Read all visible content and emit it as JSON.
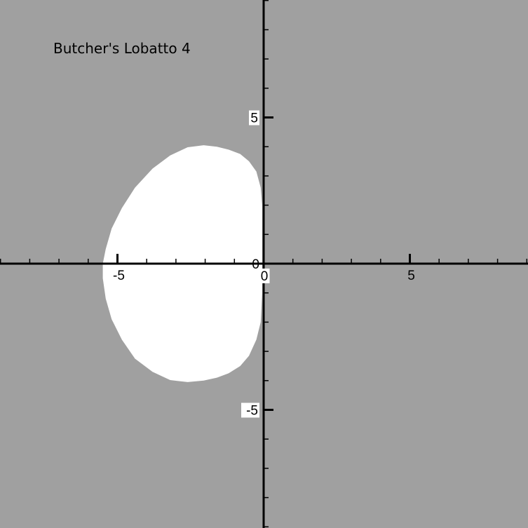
{
  "chart_data": {
    "type": "area",
    "title": "Butcher's Lobatto 4",
    "xlabel": "",
    "ylabel": "",
    "xlim": [
      -9,
      9
    ],
    "ylim": [
      -9,
      9
    ],
    "grid": false,
    "colors": {
      "background": "#a0a0a0",
      "region": "#ffffff",
      "axis": "#000000"
    },
    "x_major_ticks": [
      -5,
      0,
      5
    ],
    "x_tick_labels": [
      "-5",
      "0",
      "5"
    ],
    "y_major_ticks": [
      -5,
      0,
      5
    ],
    "y_tick_labels": [
      "-5",
      "0",
      "5"
    ],
    "minor_tick_step": 1,
    "region_boundary": {
      "x": [
        -0.05,
        -0.1,
        -0.25,
        -0.5,
        -0.8,
        -1.2,
        -1.6,
        -2.05,
        -2.6,
        -3.2,
        -3.8,
        -4.4,
        -4.85,
        -5.2,
        -5.4,
        -5.5,
        -5.5,
        -5.4,
        -5.2,
        -4.85,
        -4.4,
        -3.8,
        -3.2,
        -2.6,
        -2.05,
        -1.6,
        -1.2,
        -0.8,
        -0.5,
        -0.25,
        -0.1,
        -0.05,
        -0.05
      ],
      "y": [
        2.0,
        2.6,
        3.15,
        3.5,
        3.75,
        3.9,
        4.0,
        4.05,
        3.98,
        3.7,
        3.25,
        2.6,
        1.9,
        1.2,
        0.5,
        0.0,
        -0.5,
        -1.2,
        -1.9,
        -2.6,
        -3.25,
        -3.7,
        -3.98,
        -4.05,
        -4.0,
        -3.9,
        -3.75,
        -3.5,
        -3.15,
        -2.6,
        -2.0,
        -1.0,
        1.0
      ]
    }
  }
}
